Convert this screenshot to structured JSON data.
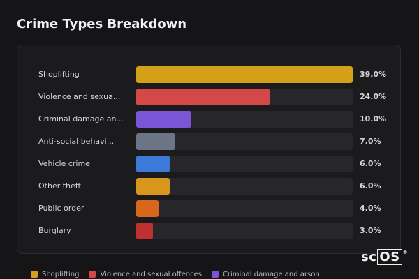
{
  "title": "Crime Types Breakdown",
  "chart_data": {
    "type": "bar",
    "orientation": "horizontal",
    "categories": [
      {
        "label": "Shoplifting",
        "display": "Shoplifting",
        "value": 39.0,
        "value_text": "39.0%",
        "color": "#d4a017"
      },
      {
        "label": "Violence and sexual offences",
        "display": "Violence and sexua...",
        "value": 24.0,
        "value_text": "24.0%",
        "color": "#d44848"
      },
      {
        "label": "Criminal damage and arson",
        "display": "Criminal damage an...",
        "value": 10.0,
        "value_text": "10.0%",
        "color": "#7a55d6"
      },
      {
        "label": "Anti-social behaviour",
        "display": "Anti-social behavi...",
        "value": 7.0,
        "value_text": "7.0%",
        "color": "#6b7585"
      },
      {
        "label": "Vehicle crime",
        "display": "Vehicle crime",
        "value": 6.0,
        "value_text": "6.0%",
        "color": "#3d79d8"
      },
      {
        "label": "Other theft",
        "display": "Other theft",
        "value": 6.0,
        "value_text": "6.0%",
        "color": "#d8961c"
      },
      {
        "label": "Public order",
        "display": "Public order",
        "value": 4.0,
        "value_text": "4.0%",
        "color": "#d8661c"
      },
      {
        "label": "Burglary",
        "display": "Burglary",
        "value": 3.0,
        "value_text": "3.0%",
        "color": "#c03030"
      }
    ],
    "max": 39.0,
    "legend": {
      "placement": "bottom",
      "entries": [
        {
          "label": "Shoplifting",
          "color": "#d4a017"
        },
        {
          "label": "Violence and sexual offences",
          "color": "#d44848"
        },
        {
          "label": "Criminal damage and arson",
          "color": "#7a55d6"
        }
      ]
    }
  },
  "logo": {
    "prefix": "sc",
    "boxed": "OS",
    "mark": "®"
  }
}
